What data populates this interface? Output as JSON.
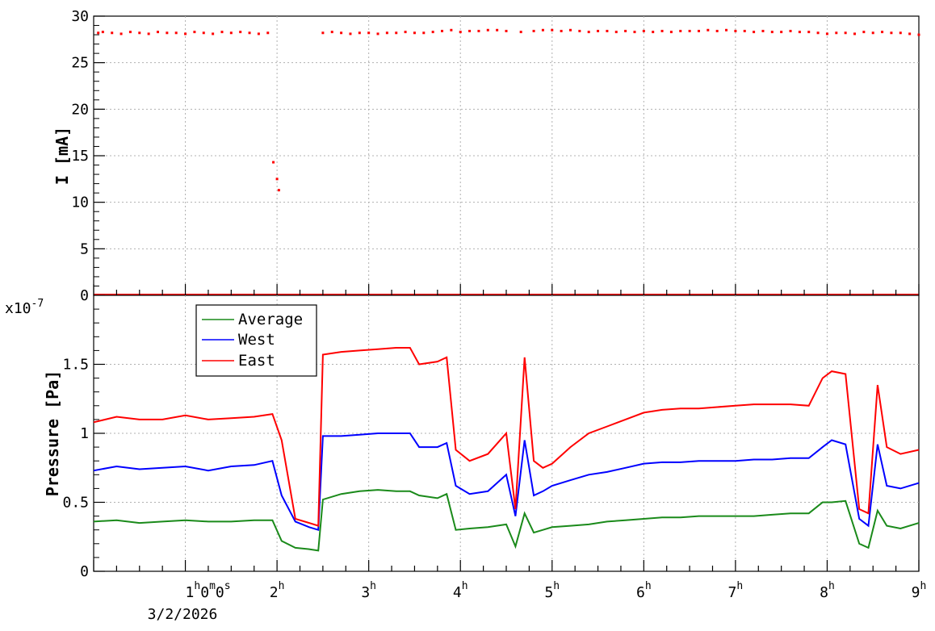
{
  "chart_data": [
    {
      "type": "scatter",
      "ylabel": "I [mA]",
      "ylim": [
        0,
        30
      ],
      "xlim_hours": [
        0,
        9
      ],
      "grid": true,
      "yticks": [
        "0",
        "5",
        "10",
        "15",
        "20",
        "25",
        "30"
      ],
      "color": "#ff0000",
      "series": [
        {
          "x_hours": [
            0.05,
            0.1,
            0.2,
            0.3,
            0.4,
            0.5,
            0.6,
            0.7,
            0.8,
            0.9,
            1.0,
            1.1,
            1.2,
            1.3,
            1.4,
            1.5,
            1.6,
            1.7,
            1.8,
            1.9,
            1.96,
            2.0,
            2.02,
            2.5,
            2.6,
            2.7,
            2.8,
            2.9,
            3.0,
            3.1,
            3.2,
            3.3,
            3.4,
            3.5,
            3.6,
            3.7,
            3.8,
            3.9,
            4.0,
            4.1,
            4.2,
            4.3,
            4.4,
            4.5,
            4.66,
            4.8,
            4.9,
            5.0,
            5.1,
            5.2,
            5.3,
            5.4,
            5.5,
            5.6,
            5.7,
            5.8,
            5.9,
            6.0,
            6.1,
            6.2,
            6.3,
            6.4,
            6.5,
            6.6,
            6.7,
            6.8,
            6.9,
            7.0,
            7.1,
            7.2,
            7.3,
            7.4,
            7.5,
            7.6,
            7.7,
            7.8,
            7.9,
            8.0,
            8.1,
            8.2,
            8.3,
            8.4,
            8.5,
            8.6,
            8.7,
            8.8,
            8.9,
            9.0
          ],
          "y": [
            28.2,
            28.3,
            28.2,
            28.1,
            28.3,
            28.2,
            28.1,
            28.3,
            28.2,
            28.2,
            28.1,
            28.3,
            28.2,
            28.1,
            28.3,
            28.2,
            28.3,
            28.2,
            28.1,
            28.2,
            14.3,
            12.5,
            11.3,
            28.2,
            28.3,
            28.2,
            28.1,
            28.2,
            28.2,
            28.1,
            28.2,
            28.2,
            28.3,
            28.2,
            28.2,
            28.3,
            28.4,
            28.5,
            28.3,
            28.4,
            28.4,
            28.5,
            28.5,
            28.4,
            28.3,
            28.4,
            28.5,
            28.5,
            28.4,
            28.5,
            28.4,
            28.3,
            28.4,
            28.4,
            28.3,
            28.4,
            28.3,
            28.4,
            28.3,
            28.4,
            28.3,
            28.4,
            28.4,
            28.4,
            28.5,
            28.4,
            28.5,
            28.4,
            28.4,
            28.3,
            28.4,
            28.3,
            28.3,
            28.4,
            28.3,
            28.3,
            28.2,
            28.1,
            28.2,
            28.2,
            28.1,
            28.3,
            28.2,
            28.3,
            28.2,
            28.2,
            28.1,
            28.0
          ]
        }
      ]
    },
    {
      "type": "line",
      "ylabel": "Pressure [Pa]",
      "y_multiplier": "x10",
      "y_multiplier_exp": "-7",
      "ylim": [
        0,
        2.0
      ],
      "xlim_hours": [
        0,
        9
      ],
      "grid": true,
      "yticks": [
        "0",
        "0.5",
        "1",
        "1.5"
      ],
      "legend_position": "top-left",
      "x": [
        0,
        0.25,
        0.5,
        0.75,
        1.0,
        1.25,
        1.5,
        1.75,
        1.95,
        2.05,
        2.2,
        2.35,
        2.45,
        2.5,
        2.7,
        2.9,
        3.1,
        3.3,
        3.45,
        3.55,
        3.75,
        3.85,
        3.95,
        4.1,
        4.3,
        4.5,
        4.6,
        4.7,
        4.8,
        4.9,
        5.0,
        5.2,
        5.4,
        5.6,
        5.8,
        6.0,
        6.2,
        6.4,
        6.6,
        6.8,
        7.0,
        7.2,
        7.4,
        7.6,
        7.8,
        7.95,
        8.05,
        8.2,
        8.35,
        8.45,
        8.55,
        8.65,
        8.8,
        9.0
      ],
      "series": [
        {
          "name": "Average",
          "color": "#1a8a1a",
          "values": [
            0.36,
            0.37,
            0.35,
            0.36,
            0.37,
            0.36,
            0.36,
            0.37,
            0.37,
            0.22,
            0.17,
            0.16,
            0.15,
            0.52,
            0.56,
            0.58,
            0.59,
            0.58,
            0.58,
            0.55,
            0.53,
            0.56,
            0.3,
            0.31,
            0.32,
            0.34,
            0.18,
            0.42,
            0.28,
            0.3,
            0.32,
            0.33,
            0.34,
            0.36,
            0.37,
            0.38,
            0.39,
            0.39,
            0.4,
            0.4,
            0.4,
            0.4,
            0.41,
            0.42,
            0.42,
            0.5,
            0.5,
            0.51,
            0.2,
            0.17,
            0.44,
            0.33,
            0.31,
            0.35
          ]
        },
        {
          "name": "West",
          "color": "#0000ff",
          "values": [
            0.73,
            0.76,
            0.74,
            0.75,
            0.76,
            0.73,
            0.76,
            0.77,
            0.8,
            0.55,
            0.36,
            0.32,
            0.3,
            0.98,
            0.98,
            0.99,
            1.0,
            1.0,
            1.0,
            0.9,
            0.9,
            0.93,
            0.62,
            0.56,
            0.58,
            0.7,
            0.4,
            0.95,
            0.55,
            0.58,
            0.62,
            0.66,
            0.7,
            0.72,
            0.75,
            0.78,
            0.79,
            0.79,
            0.8,
            0.8,
            0.8,
            0.81,
            0.81,
            0.82,
            0.82,
            0.9,
            0.95,
            0.92,
            0.38,
            0.33,
            0.92,
            0.62,
            0.6,
            0.64
          ]
        },
        {
          "name": "East",
          "color": "#ff0000",
          "values": [
            1.08,
            1.12,
            1.1,
            1.1,
            1.13,
            1.1,
            1.11,
            1.12,
            1.14,
            0.95,
            0.38,
            0.35,
            0.33,
            1.57,
            1.59,
            1.6,
            1.61,
            1.62,
            1.62,
            1.5,
            1.52,
            1.55,
            0.88,
            0.8,
            0.85,
            1.0,
            0.45,
            1.55,
            0.8,
            0.75,
            0.78,
            0.9,
            1.0,
            1.05,
            1.1,
            1.15,
            1.17,
            1.18,
            1.18,
            1.19,
            1.2,
            1.21,
            1.21,
            1.21,
            1.2,
            1.4,
            1.45,
            1.43,
            0.45,
            0.42,
            1.35,
            0.9,
            0.85,
            0.88
          ]
        }
      ]
    }
  ],
  "x_axis": {
    "tick_labels": [
      "1",
      "2",
      "3",
      "4",
      "5",
      "6",
      "7",
      "8",
      "9"
    ],
    "first_tick_suffix": [
      "h",
      "0",
      "m",
      "0",
      "s"
    ],
    "hour_sup": "h",
    "date": "3/2/2026"
  }
}
